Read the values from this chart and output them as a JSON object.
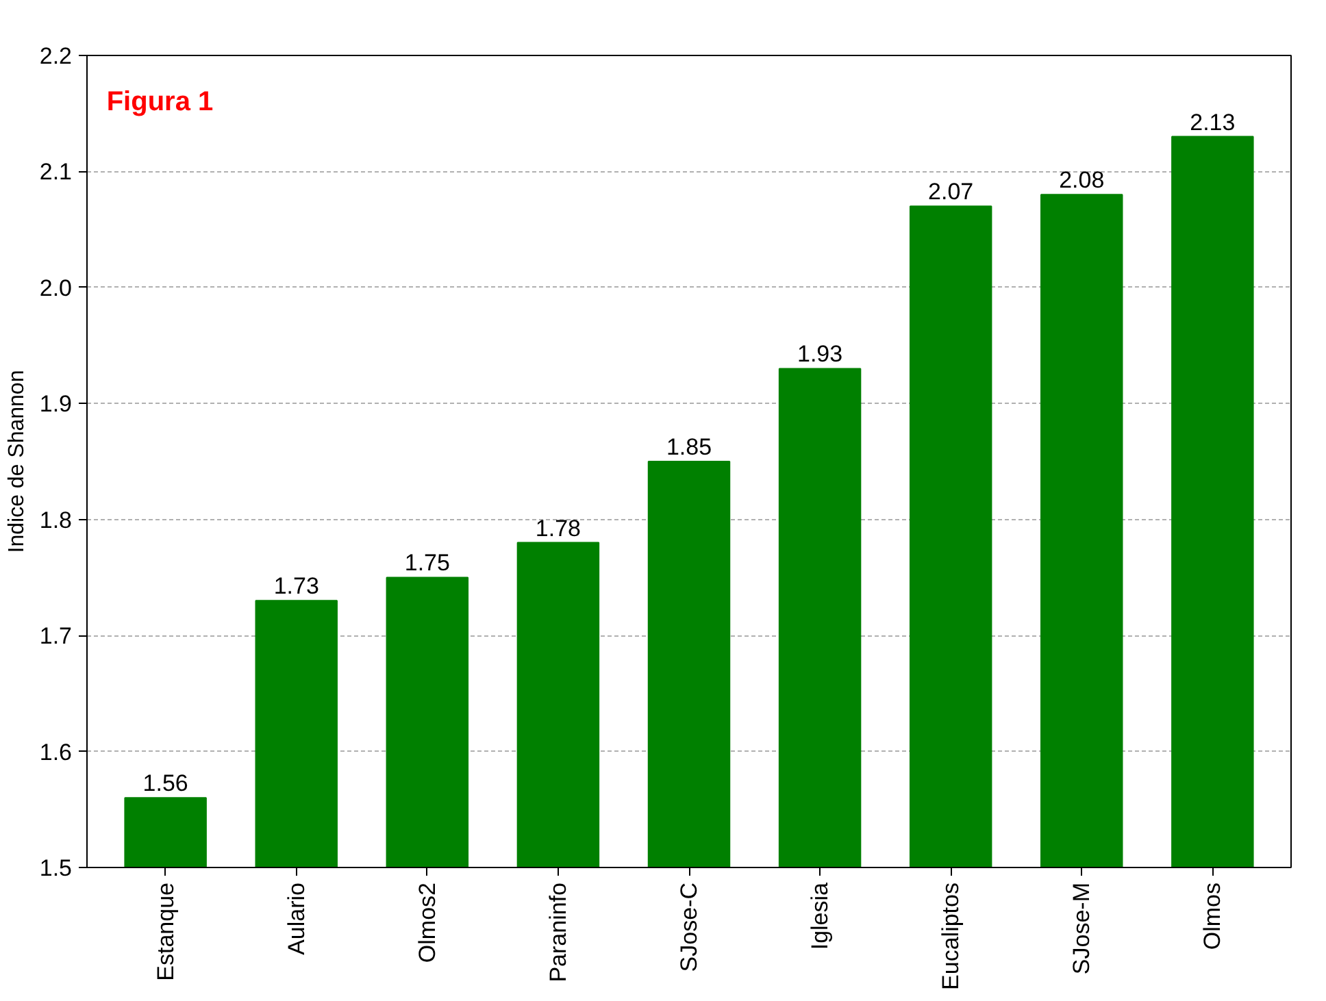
{
  "chart_data": {
    "type": "bar",
    "title": "Figura 1",
    "ylabel": "Indice de Shannon",
    "categories": [
      "Estanque",
      "Aulario",
      "Olmos2",
      "Paraninfo",
      "SJose-C",
      "Iglesia",
      "Eucaliptos",
      "SJose-M",
      "Olmos"
    ],
    "values": [
      1.56,
      1.73,
      1.75,
      1.78,
      1.85,
      1.93,
      2.07,
      2.08,
      2.13
    ],
    "color": "#008000",
    "ylim": [
      1.5,
      2.2
    ],
    "yticks": [
      1.5,
      1.6,
      1.7,
      1.8,
      1.9,
      {
        "value": 2.0,
        "label": "2.0"
      },
      2.1,
      2.2
    ],
    "grid": "y",
    "data_labels": true
  }
}
